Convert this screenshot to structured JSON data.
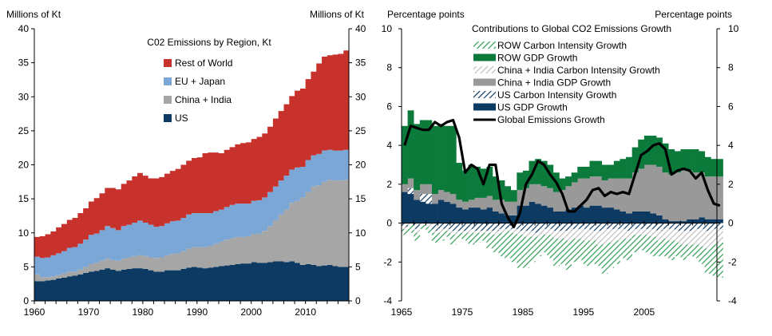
{
  "chart_data": [
    {
      "type": "area",
      "stacked": true,
      "title": "C02 Emissions by Region, Kt",
      "ylabel_left": "Millions of Kt",
      "ylabel_right": "Millions of Kt",
      "xlim": [
        1960,
        2018
      ],
      "ylim": [
        0,
        40
      ],
      "yticks": [
        "0",
        "5",
        "10",
        "15",
        "20",
        "25",
        "30",
        "35",
        "40"
      ],
      "xticks": [
        "1960",
        "1970",
        "1980",
        "1990",
        "2000",
        "2010"
      ],
      "legend": [
        "Rest of World",
        "EU + Japan",
        "China + India",
        "US"
      ],
      "x": [
        1960,
        1961,
        1962,
        1963,
        1964,
        1965,
        1966,
        1967,
        1968,
        1969,
        1970,
        1971,
        1972,
        1973,
        1974,
        1975,
        1976,
        1977,
        1978,
        1979,
        1980,
        1981,
        1982,
        1983,
        1984,
        1985,
        1986,
        1987,
        1988,
        1989,
        1990,
        1991,
        1992,
        1993,
        1994,
        1995,
        1996,
        1997,
        1998,
        1999,
        2000,
        2001,
        2002,
        2003,
        2004,
        2005,
        2006,
        2007,
        2008,
        2009,
        2010,
        2011,
        2012,
        2013,
        2014,
        2015,
        2016,
        2017
      ],
      "series": [
        {
          "name": "US",
          "color": "#0d3a63",
          "values": [
            2.9,
            2.9,
            3.0,
            3.1,
            3.3,
            3.4,
            3.6,
            3.7,
            3.9,
            4.1,
            4.3,
            4.4,
            4.6,
            4.8,
            4.6,
            4.4,
            4.6,
            4.7,
            4.8,
            4.8,
            4.7,
            4.5,
            4.3,
            4.3,
            4.5,
            4.5,
            4.5,
            4.7,
            4.9,
            5.0,
            4.9,
            4.8,
            4.9,
            5.0,
            5.1,
            5.2,
            5.3,
            5.4,
            5.5,
            5.5,
            5.7,
            5.6,
            5.6,
            5.7,
            5.8,
            5.8,
            5.7,
            5.8,
            5.6,
            5.3,
            5.4,
            5.3,
            5.1,
            5.2,
            5.3,
            5.1,
            5.0,
            5.0
          ]
        },
        {
          "name": "China + India",
          "color": "#a6a6a6",
          "values": [
            1.0,
            0.6,
            0.5,
            0.5,
            0.5,
            0.6,
            0.7,
            0.6,
            0.7,
            0.9,
            1.1,
            1.2,
            1.3,
            1.4,
            1.4,
            1.5,
            1.6,
            1.7,
            1.8,
            1.9,
            1.9,
            1.9,
            2.0,
            2.1,
            2.2,
            2.4,
            2.5,
            2.6,
            2.8,
            2.9,
            3.0,
            3.1,
            3.2,
            3.4,
            3.6,
            3.8,
            3.9,
            4.0,
            3.9,
            4.0,
            4.1,
            4.3,
            4.7,
            5.3,
            6.0,
            6.9,
            7.7,
            8.6,
            9.1,
            9.9,
            10.6,
            11.5,
            11.9,
            12.3,
            12.5,
            12.6,
            12.7,
            12.8
          ]
        },
        {
          "name": "EU + Japan",
          "color": "#7ba7d7",
          "values": [
            2.6,
            2.8,
            2.9,
            3.1,
            3.2,
            3.3,
            3.5,
            3.6,
            3.8,
            4.0,
            4.3,
            4.3,
            4.5,
            4.8,
            4.7,
            4.5,
            4.8,
            4.8,
            4.9,
            5.1,
            4.9,
            4.8,
            4.6,
            4.6,
            4.7,
            4.8,
            4.8,
            4.9,
            5.0,
            5.0,
            5.0,
            5.0,
            4.8,
            4.8,
            4.7,
            4.8,
            4.9,
            4.9,
            4.9,
            4.8,
            4.9,
            4.9,
            4.9,
            5.0,
            5.0,
            5.0,
            5.0,
            4.9,
            4.9,
            4.5,
            4.7,
            4.6,
            4.6,
            4.6,
            4.4,
            4.4,
            4.4,
            4.4
          ]
        },
        {
          "name": "Rest of World",
          "color": "#c8322d",
          "values": [
            2.9,
            3.2,
            3.4,
            3.5,
            3.8,
            4.0,
            4.1,
            4.3,
            4.5,
            4.6,
            4.9,
            5.2,
            5.4,
            5.6,
            5.9,
            6.0,
            6.2,
            6.5,
            6.8,
            7.0,
            6.9,
            6.8,
            7.1,
            7.2,
            7.3,
            7.4,
            7.6,
            7.8,
            7.9,
            8.1,
            8.2,
            8.8,
            8.9,
            8.6,
            8.3,
            8.4,
            8.5,
            8.7,
            8.9,
            9.0,
            9.1,
            9.3,
            9.4,
            9.6,
            10.0,
            10.2,
            10.5,
            10.8,
            11.3,
            11.5,
            11.9,
            12.3,
            13.3,
            13.8,
            13.9,
            14.1,
            14.2,
            14.6
          ]
        }
      ]
    },
    {
      "type": "bar",
      "stacked": true,
      "title": "Contributions to Global CO2 Emissions Growth",
      "ylabel_left": "Percentage  points",
      "ylabel_right": "Percentage  points",
      "xlim": [
        1965,
        2017
      ],
      "ylim": [
        -4,
        10
      ],
      "yticks": [
        "-4",
        "-2",
        "0",
        "2",
        "4",
        "6",
        "8",
        "10"
      ],
      "xticks": [
        "1965",
        "1975",
        "1985",
        "1995",
        "2005"
      ],
      "x": [
        1965,
        1966,
        1967,
        1968,
        1969,
        1970,
        1971,
        1972,
        1973,
        1974,
        1975,
        1976,
        1977,
        1978,
        1979,
        1980,
        1981,
        1982,
        1983,
        1984,
        1985,
        1986,
        1987,
        1988,
        1989,
        1990,
        1991,
        1992,
        1993,
        1994,
        1995,
        1996,
        1997,
        1998,
        1999,
        2000,
        2001,
        2002,
        2003,
        2004,
        2005,
        2006,
        2007,
        2008,
        2009,
        2010,
        2011,
        2012,
        2013,
        2014,
        2015,
        2016,
        2017
      ],
      "series": [
        {
          "name": "ROW Carbon Intensity Growth",
          "color": "#2f9e55",
          "pattern": "diagonal",
          "values": [
            -0.3,
            -0.4,
            -0.4,
            -0.2,
            -0.3,
            -0.5,
            -0.4,
            -0.3,
            -0.5,
            -0.3,
            -0.4,
            -0.6,
            -0.5,
            -0.4,
            -0.8,
            -0.9,
            -1.2,
            -1.4,
            -1.5,
            -1.7,
            -1.6,
            -1.3,
            -1.0,
            -0.9,
            -1.2,
            -1.4,
            -1.3,
            -1.5,
            -1.2,
            -1.1,
            -1.3,
            -1.2,
            -1.1,
            -1.5,
            -1.3,
            -1.2,
            -1.0,
            -1.1,
            -0.9,
            -0.8,
            -0.9,
            -1.0,
            -0.8,
            -0.9,
            -1.0,
            -0.7,
            -0.8,
            -0.6,
            -0.7,
            -0.9,
            -1.3,
            -1.6,
            -1.8
          ]
        },
        {
          "name": "ROW GDP Growth",
          "color": "#0b7a3b",
          "pattern": "solid",
          "values": [
            3.0,
            3.5,
            3.4,
            3.3,
            3.3,
            3.5,
            3.4,
            3.4,
            3.5,
            1.9,
            1.6,
            1.8,
            1.6,
            1.5,
            1.5,
            1.2,
            1.0,
            0.8,
            0.6,
            0.9,
            0.9,
            1.2,
            1.3,
            1.3,
            1.2,
            1.0,
            0.6,
            0.5,
            0.5,
            0.6,
            0.6,
            0.8,
            0.8,
            0.8,
            0.7,
            0.9,
            1.0,
            1.1,
            1.3,
            1.5,
            1.5,
            1.5,
            1.5,
            1.5,
            1.3,
            1.1,
            1.1,
            1.1,
            1.2,
            1.1,
            1.0,
            0.9,
            0.9
          ]
        },
        {
          "name": "China + India Carbon Intensity Growth",
          "color": "#bfbfbf",
          "pattern": "diagonal",
          "values": [
            -0.1,
            -0.1,
            -0.2,
            -0.1,
            -0.2,
            -0.1,
            -0.2,
            -0.1,
            -0.2,
            -0.1,
            -0.1,
            -0.2,
            -0.1,
            -0.1,
            -0.1,
            -0.2,
            -0.2,
            -0.1,
            -0.2,
            -0.2,
            -0.3,
            -0.3,
            -0.2,
            -0.3,
            -0.3,
            -0.4,
            -0.4,
            -0.5,
            -0.5,
            -0.5,
            -0.6,
            -0.5,
            -0.7,
            -0.8,
            -0.7,
            -0.6,
            -0.5,
            -0.4,
            -0.3,
            -0.3,
            -0.3,
            -0.4,
            -0.5,
            -0.5,
            -0.6,
            -0.6,
            -0.7,
            -0.7,
            -0.8,
            -0.9,
            -0.9,
            -0.8,
            -0.7
          ]
        },
        {
          "name": "China + India GDP Growth",
          "color": "#999999",
          "pattern": "solid",
          "values": [
            0.4,
            0.5,
            0.5,
            0.5,
            0.5,
            0.5,
            0.5,
            0.5,
            0.5,
            0.4,
            0.4,
            0.4,
            0.5,
            0.6,
            0.6,
            0.6,
            0.7,
            0.7,
            0.7,
            0.8,
            0.9,
            0.9,
            1.0,
            1.0,
            1.0,
            1.0,
            1.1,
            1.2,
            1.3,
            1.4,
            1.5,
            1.5,
            1.5,
            1.4,
            1.5,
            1.6,
            1.7,
            1.8,
            2.0,
            2.2,
            2.4,
            2.5,
            2.5,
            2.4,
            2.4,
            2.5,
            2.6,
            2.5,
            2.4,
            2.3,
            2.2,
            2.2,
            2.2
          ]
        },
        {
          "name": "US Carbon Intensity Growth",
          "color": "#0d3a63",
          "pattern": "diagonal",
          "values": [
            -0.2,
            0.3,
            -0.3,
            0.4,
            0.5,
            -0.4,
            -0.3,
            -0.3,
            -0.4,
            -0.4,
            -0.4,
            -0.3,
            -0.4,
            -0.4,
            -0.4,
            -0.4,
            -0.3,
            -0.3,
            -0.3,
            -0.4,
            -0.4,
            -0.4,
            -0.5,
            -0.3,
            -0.3,
            -0.4,
            -0.4,
            -0.4,
            -0.3,
            -0.3,
            -0.3,
            -0.4,
            -0.4,
            -0.3,
            -0.3,
            -0.3,
            -0.3,
            -0.4,
            -0.3,
            -0.3,
            -0.3,
            -0.3,
            -0.4,
            -0.3,
            -0.3,
            -0.4,
            -0.4,
            -0.4,
            -0.3,
            -0.3,
            -0.4,
            -0.3,
            -0.3
          ]
        },
        {
          "name": "US GDP Growth",
          "color": "#0d3a63",
          "pattern": "solid",
          "values": [
            1.6,
            1.5,
            1.2,
            1.1,
            1.0,
            1.0,
            1.2,
            1.1,
            1.0,
            0.8,
            0.7,
            0.8,
            0.8,
            0.7,
            0.8,
            0.6,
            0.5,
            0.4,
            0.4,
            0.9,
            0.9,
            1.1,
            1.0,
            0.9,
            0.8,
            0.6,
            0.6,
            0.7,
            0.8,
            0.9,
            0.8,
            0.9,
            0.9,
            0.8,
            0.8,
            0.7,
            0.6,
            0.5,
            0.6,
            0.6,
            0.6,
            0.5,
            0.4,
            0.2,
            0.1,
            0.1,
            0.1,
            0.2,
            0.2,
            0.3,
            0.2,
            0.2,
            0.2
          ]
        },
        {
          "name": "Global Emissions Growth",
          "color": "#000000",
          "type": "line",
          "values": [
            4.0,
            5.0,
            4.9,
            4.8,
            4.8,
            5.2,
            5.0,
            5.2,
            5.3,
            4.4,
            2.6,
            3.0,
            2.8,
            2.0,
            3.0,
            3.0,
            1.0,
            0.3,
            -0.2,
            0.5,
            2.0,
            2.5,
            3.2,
            3.0,
            2.5,
            2.1,
            1.5,
            0.6,
            0.6,
            0.9,
            1.2,
            1.7,
            1.8,
            1.4,
            1.6,
            1.5,
            1.6,
            1.5,
            2.5,
            3.5,
            3.7,
            4.0,
            4.1,
            3.8,
            2.5,
            2.7,
            2.8,
            2.7,
            2.3,
            2.6,
            1.7,
            1.0,
            0.9
          ]
        }
      ]
    }
  ]
}
